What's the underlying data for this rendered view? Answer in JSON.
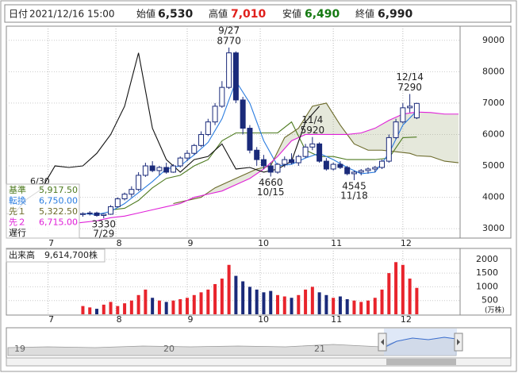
{
  "header": {
    "date_label": "日付",
    "date": "2021/12/16 15:00",
    "open_label": "始値",
    "open": "6,530",
    "high_label": "高値",
    "high": "7,010",
    "low_label": "安値",
    "low": "6,490",
    "close_label": "終値",
    "close": "6,990"
  },
  "chart_data": [
    {
      "type": "candlestick",
      "x": [
        22,
        24,
        26,
        28,
        30,
        32,
        34,
        36,
        38,
        40,
        42,
        44,
        46,
        48,
        50,
        52,
        54,
        56,
        58,
        60,
        62,
        64,
        66,
        68,
        70,
        72,
        74,
        76,
        78,
        80,
        82,
        84,
        86,
        88,
        90,
        92,
        94,
        96,
        98,
        100,
        102,
        104,
        106,
        108,
        110,
        112,
        114,
        116,
        118
      ],
      "candles": {
        "open": [
          3450,
          3480,
          3500,
          3420,
          3460,
          3700,
          3950,
          4100,
          4250,
          4700,
          5000,
          4850,
          4950,
          4800,
          5000,
          5250,
          5400,
          5650,
          6000,
          6400,
          6900,
          7500,
          8600,
          7100,
          6200,
          5500,
          5200,
          5000,
          4800,
          5050,
          5200,
          5100,
          5300,
          5600,
          5700,
          5150,
          4900,
          5050,
          4950,
          4750,
          4800,
          4850,
          4900,
          4950,
          5150,
          5900,
          6400,
          6850,
          6530
        ],
        "high": [
          3520,
          3560,
          3540,
          3480,
          3750,
          4000,
          4150,
          4350,
          4800,
          5100,
          5150,
          5000,
          5100,
          5050,
          5300,
          5500,
          5700,
          6100,
          6500,
          7000,
          7700,
          8770,
          8650,
          7200,
          6300,
          5600,
          5350,
          5100,
          5100,
          5300,
          5400,
          5350,
          5700,
          5920,
          5750,
          5250,
          5100,
          5150,
          5000,
          4850,
          4900,
          4950,
          5000,
          5200,
          6000,
          6500,
          7000,
          7290,
          7010
        ],
        "low": [
          3380,
          3420,
          3380,
          3330,
          3440,
          3680,
          3900,
          4000,
          4200,
          4650,
          4800,
          4700,
          4750,
          4780,
          4950,
          5150,
          5350,
          5600,
          5950,
          6300,
          6850,
          7450,
          7000,
          6000,
          5400,
          5000,
          4900,
          4660,
          4750,
          4950,
          5050,
          5000,
          5250,
          5500,
          5100,
          4850,
          4850,
          4900,
          4700,
          4545,
          4700,
          4750,
          4800,
          4900,
          5100,
          5850,
          6350,
          6700,
          6490
        ],
        "close": [
          3480,
          3500,
          3420,
          3460,
          3700,
          3950,
          4100,
          4250,
          4700,
          5000,
          4850,
          4950,
          4800,
          5000,
          5250,
          5400,
          5650,
          6000,
          6400,
          6900,
          7500,
          8600,
          7100,
          6200,
          5500,
          5200,
          5000,
          4800,
          5050,
          5200,
          5100,
          5300,
          5600,
          5700,
          5150,
          4900,
          5050,
          4950,
          4750,
          4800,
          4850,
          4900,
          4950,
          5150,
          5900,
          6400,
          6850,
          6900,
          6990
        ],
        "up_color": "#e8242c",
        "down_color": "#1a2a7a"
      },
      "series": [
        {
          "name": "基準",
          "color": "#4d7a1f",
          "last_label": "5,917.50",
          "x": [
            30,
            34,
            38,
            42,
            46,
            50,
            54,
            58,
            62,
            66,
            70,
            74,
            78,
            82,
            86,
            90,
            94,
            98,
            102,
            106,
            110,
            114,
            118
          ],
          "values": [
            3600,
            3650,
            3900,
            4300,
            4600,
            4700,
            5000,
            5200,
            5800,
            6050,
            6050,
            6050,
            6050,
            6400,
            5500,
            5300,
            5300,
            5200,
            5200,
            5200,
            5250,
            5900,
            5917.5
          ]
        },
        {
          "name": "転換",
          "color": "#2b7de0",
          "last_label": "6,750.00",
          "x": [
            22,
            26,
            30,
            34,
            38,
            42,
            46,
            50,
            54,
            58,
            62,
            66,
            70,
            74,
            78,
            82,
            86,
            90,
            94,
            98,
            102,
            106,
            110,
            114,
            118
          ],
          "values": [
            3480,
            3450,
            3550,
            3800,
            4150,
            4500,
            4900,
            5000,
            5350,
            5750,
            6500,
            7700,
            7000,
            5800,
            5000,
            5050,
            5250,
            5400,
            5200,
            4950,
            4750,
            4800,
            5400,
            6300,
            6750
          ]
        },
        {
          "name": "先１",
          "color": "#6b6a2a",
          "last_label": "5,322.50",
          "x": [
            48,
            52,
            56,
            60,
            64,
            68,
            72,
            76,
            80,
            84,
            88,
            92,
            96,
            100,
            104,
            108,
            112,
            116,
            118,
            122,
            126,
            130
          ],
          "values": [
            3800,
            3900,
            4000,
            4300,
            4500,
            4700,
            4900,
            5000,
            5900,
            6200,
            6900,
            7000,
            6300,
            5700,
            5500,
            5500,
            5450,
            5400,
            5322.5,
            5300,
            5150,
            5100
          ]
        },
        {
          "name": "先２",
          "color": "#e020d8",
          "last_label": "6,715.00",
          "x": [
            14,
            18,
            22,
            26,
            30,
            34,
            38,
            42,
            46,
            50,
            54,
            58,
            62,
            66,
            70,
            74,
            78,
            82,
            86,
            90,
            94,
            98,
            102,
            106,
            110,
            114,
            118,
            122,
            126,
            130
          ],
          "values": [
            3100,
            3150,
            3200,
            3250,
            3350,
            3400,
            3500,
            3600,
            3700,
            3800,
            4000,
            4100,
            4200,
            4400,
            4600,
            4900,
            5300,
            5800,
            6000,
            6000,
            6000,
            6000,
            6050,
            6200,
            6450,
            6650,
            6715,
            6700,
            6650,
            6650
          ]
        },
        {
          "name": "遅行",
          "color": "#111111",
          "x": [
            -2,
            2,
            6,
            10,
            14,
            18,
            22,
            26,
            30,
            34,
            38,
            42,
            46,
            50,
            54,
            58,
            62,
            66,
            70,
            74,
            78,
            82,
            86,
            90
          ],
          "values": [
            3500,
            3460,
            3950,
            4250,
            5000,
            4950,
            5000,
            5400,
            6000,
            6900,
            8600,
            6200,
            5200,
            4800,
            5200,
            5300,
            5700,
            4900,
            4950,
            4800,
            4900,
            5150,
            6400,
            6900
          ]
        }
      ],
      "annotations": [
        {
          "date": "9/27",
          "value": 8770,
          "x": 64,
          "kind": "high"
        },
        {
          "date": "12/14",
          "value": 7290,
          "x": 116,
          "kind": "high"
        },
        {
          "date": "11/4",
          "value": 5920,
          "x": 88,
          "kind": "high"
        },
        {
          "date": "10/15",
          "value": 4660,
          "x": 76,
          "kind": "low"
        },
        {
          "date": "11/18",
          "value": 4545,
          "x": 100,
          "kind": "low"
        },
        {
          "date": "7/29",
          "value": 3330,
          "x": 28,
          "kind": "low"
        }
      ],
      "left_date_label": "6/30",
      "xlim": [
        0,
        130
      ],
      "xticks": [
        {
          "value": 12,
          "label": "7"
        },
        {
          "value": 31.5,
          "label": "8"
        },
        {
          "value": 52,
          "label": "9"
        },
        {
          "value": 73,
          "label": "10"
        },
        {
          "value": 94,
          "label": "11"
        },
        {
          "value": 114,
          "label": "12"
        }
      ],
      "ylim": [
        2700,
        9450
      ],
      "yticks": [
        3000,
        4000,
        5000,
        6000,
        7000,
        8000,
        9000
      ],
      "grid": true
    },
    {
      "type": "bar",
      "title": "出来高",
      "total_label": "9,614,700株",
      "unit_label": "(万株)",
      "x": [
        22,
        24,
        26,
        28,
        30,
        32,
        34,
        36,
        38,
        40,
        42,
        44,
        46,
        48,
        50,
        52,
        54,
        56,
        58,
        60,
        62,
        64,
        66,
        68,
        70,
        72,
        74,
        76,
        78,
        80,
        82,
        84,
        86,
        88,
        90,
        92,
        94,
        96,
        98,
        100,
        102,
        104,
        106,
        108,
        110,
        112,
        114,
        116,
        118
      ],
      "values": [
        300,
        250,
        200,
        350,
        450,
        300,
        400,
        500,
        700,
        900,
        600,
        500,
        450,
        500,
        550,
        600,
        700,
        800,
        900,
        1100,
        1300,
        1800,
        1400,
        1200,
        1000,
        900,
        800,
        850,
        700,
        650,
        600,
        700,
        900,
        1000,
        800,
        700,
        600,
        650,
        550,
        500,
        450,
        500,
        600,
        900,
        1500,
        1900,
        1800,
        1300,
        961.47
      ],
      "xlim": [
        0,
        130
      ],
      "xticks": [
        {
          "value": 12,
          "label": "7"
        },
        {
          "value": 31.5,
          "label": "8"
        },
        {
          "value": 52,
          "label": "9"
        },
        {
          "value": 73,
          "label": "10"
        },
        {
          "value": 94,
          "label": "11"
        },
        {
          "value": 114,
          "label": "12"
        }
      ],
      "ylim": [
        0,
        2400
      ],
      "yticks": [
        500,
        1000,
        1500,
        2000
      ],
      "grid": true
    }
  ],
  "navigator": {
    "labels": [
      "19",
      "20",
      "21"
    ]
  }
}
